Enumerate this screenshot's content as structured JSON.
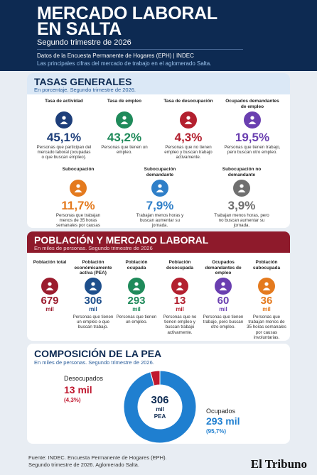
{
  "header": {
    "title_lines": [
      "MERCADO LABORAL",
      "EN SALTA"
    ],
    "subtitle": "Segundo trimestre de 2026",
    "source_line": "Datos de la Encuesta Permanente de Hogares (EPH) | INDEC",
    "description": "Las principales cifras del mercado de trabajo en el aglomerado Salta."
  },
  "rates": {
    "title": "TASAS GENERALES",
    "subtitle": "En porcentaje. Segundo trimestre de 2026.",
    "items": [
      {
        "label": "Tasa de actividad",
        "value": "45,1%",
        "description": "Personas que participan del mercado laboral (ocupadas o que buscan empleo).",
        "color": "#1d3e7a"
      },
      {
        "label": "Tasa de empleo",
        "value": "43,2%",
        "description": "Personas que tienen un empleo.",
        "color": "#1f8a5a"
      },
      {
        "label": "Tasa de desocupación",
        "value": "4,3%",
        "description": "Personas que no tienen empleo y buscan trabajo activamente.",
        "color": "#b3202f"
      },
      {
        "label": "Ocupados demandantes de empleo",
        "value": "19,5%",
        "description": "Personas que tienen trabajo, pero buscan otro empleo.",
        "color": "#6a3fb0"
      },
      {
        "label": "Subocupación",
        "value": "11,7%",
        "description": "Personas que trabajan menos de 35 horas semanales por causas involuntarias.",
        "color": "#e47a1e"
      },
      {
        "label": "Subocupación demandante",
        "value": "7,9%",
        "description": "Trabajan menos horas y buscan aumentar su jornada.",
        "color": "#2f7fc8"
      },
      {
        "label": "Subocupación no demandante",
        "value": "3,9%",
        "description": "Trabajan menos horas, pero no buscan aumentar su jornada.",
        "color": "#6f6f6f"
      }
    ]
  },
  "population": {
    "title": "POBLACIÓN Y MERCADO LABORAL",
    "subtitle": "En miles de personas. Segundo trimestre de 2026",
    "items": [
      {
        "label": "Población total",
        "value": "679",
        "unit": "mil",
        "color": "#9b1c2e"
      },
      {
        "label": "Población económicamente activa (PEA)",
        "value": "306",
        "unit": "mil",
        "description": "Personas que tienen un empleo o que buscan trabajo.",
        "color": "#1e4f8c"
      },
      {
        "label": "Población ocupada",
        "value": "293",
        "unit": "mil",
        "description": "Personas que tienen un empleo.",
        "color": "#1f8a5a"
      },
      {
        "label": "Población desocupada",
        "value": "13",
        "unit": "mil",
        "description": "Personas que no tienen empleo y buscan trabajo activamente.",
        "color": "#b3202f"
      },
      {
        "label": "Ocupados demandantes de empleo",
        "value": "60",
        "unit": "mil",
        "description": "Personas que tienen trabajo, pero buscan otro empleo.",
        "color": "#6a3fb0"
      },
      {
        "label": "Población subocupada",
        "value": "36",
        "unit": "mil",
        "description": "Personas que trabajan menos de 35 horas semanales por causas involuntarias.",
        "color": "#e47a1e"
      }
    ]
  },
  "composition": {
    "title": "COMPOSICIÓN DE LA PEA",
    "subtitle": "En miles de personas. Segundo trimestre de 2026.",
    "total": {
      "value": "306",
      "unit": "mil",
      "caption": "PEA"
    },
    "segments": [
      {
        "name": "Desocupados",
        "value": 13,
        "value_label": "13 mil",
        "share": "(4,3%)",
        "color": "#c0182f"
      },
      {
        "name": "Ocupados",
        "value": 293,
        "value_label": "293 mil",
        "share": "(95,7%)",
        "color": "#1f7fd0"
      }
    ]
  },
  "footer": {
    "source_lines": [
      "Fuente: INDEC. Encuesta Permanente de Hogares (EPH).",
      "Segundo trimestre de 2026. Aglomerado Salta."
    ],
    "brand": "El Tribuno"
  }
}
